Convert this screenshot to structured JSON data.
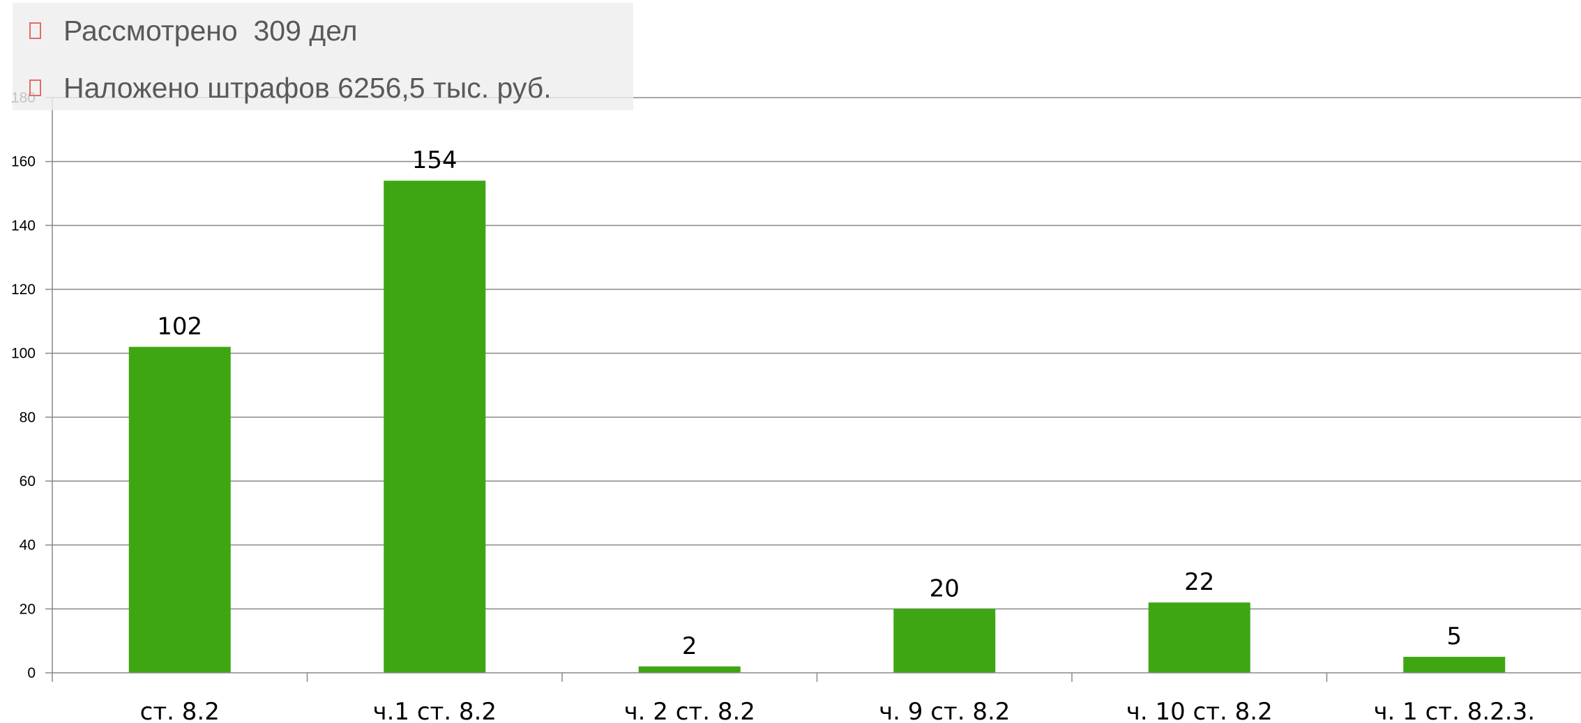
{
  "bullets": [
    {
      "icon": "checkbox-outline-icon",
      "text": "Рассмотрено  309 дел"
    },
    {
      "icon": "checkbox-outline-icon",
      "text": "Наложено штрафов 6256,5 тыс. руб."
    }
  ],
  "colors": {
    "bar": "#3ea613",
    "grid": "#888888",
    "bullet_icon": "#e56a6a",
    "bullet_text": "#595959"
  },
  "chart_data": {
    "type": "bar",
    "title": "",
    "xlabel": "",
    "ylabel": "",
    "categories": [
      "ст. 8.2",
      "ч.1 ст. 8.2",
      "ч. 2 ст. 8.2",
      "ч. 9 ст. 8.2",
      "ч. 10 ст. 8.2",
      "ч. 1 ст. 8.2.3."
    ],
    "values": [
      102,
      154,
      2,
      20,
      22,
      5
    ],
    "data_labels": [
      "102",
      "154",
      "2",
      "20",
      "22",
      "5"
    ],
    "ylim": [
      0,
      180
    ],
    "yticks": [
      0,
      20,
      40,
      60,
      80,
      100,
      120,
      140,
      160,
      180
    ],
    "grid": true,
    "legend": "none"
  }
}
